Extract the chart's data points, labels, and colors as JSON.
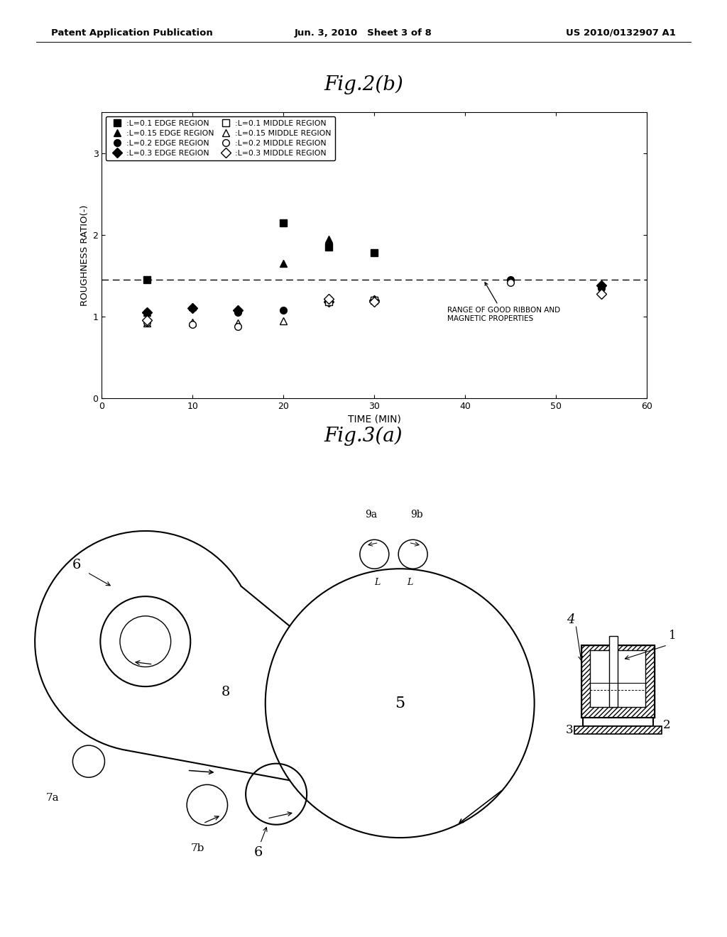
{
  "header_left": "Patent Application Publication",
  "header_center": "Jun. 3, 2010   Sheet 3 of 8",
  "header_right": "US 2010/0132907 A1",
  "fig2b_title": "Fig.2(b)",
  "fig3a_title": "Fig.3(a)",
  "xlabel": "TIME (MIN)",
  "ylabel": "ROUGHNESS RATIO(-)",
  "xlim": [
    0,
    60
  ],
  "ylim": [
    0.0,
    3.5
  ],
  "yticks": [
    0.0,
    1.0,
    2.0,
    3.0
  ],
  "xticks": [
    0,
    10,
    20,
    30,
    40,
    50,
    60
  ],
  "dashed_line_y": 1.45,
  "annotation_text": "RANGE OF GOOD RIBBON AND\nMAGNETIC PROPERTIES",
  "series": {
    "L01_edge": {
      "x": [
        5,
        20,
        25,
        30
      ],
      "y": [
        1.45,
        2.15,
        1.85,
        1.78
      ],
      "marker": "s",
      "filled": true
    },
    "L015_edge": {
      "x": [
        5,
        10,
        20,
        25
      ],
      "y": [
        1.05,
        1.12,
        1.65,
        1.95
      ],
      "marker": "^",
      "filled": true
    },
    "L02_edge": {
      "x": [
        5,
        10,
        15,
        20,
        45,
        55
      ],
      "y": [
        1.05,
        1.1,
        1.05,
        1.08,
        1.45,
        1.35
      ],
      "marker": "o",
      "filled": true
    },
    "L03_edge": {
      "x": [
        5,
        10,
        15,
        25,
        30,
        55
      ],
      "y": [
        1.05,
        1.1,
        1.08,
        1.18,
        1.2,
        1.38
      ],
      "marker": "D",
      "filled": true
    },
    "L01_middle": {
      "x": [
        25,
        30
      ],
      "y": [
        1.18,
        1.2
      ],
      "marker": "s",
      "filled": false
    },
    "L015_middle": {
      "x": [
        5,
        10,
        15,
        20
      ],
      "y": [
        0.92,
        0.93,
        0.92,
        0.95
      ],
      "marker": "^",
      "filled": false
    },
    "L02_middle": {
      "x": [
        5,
        10,
        15,
        45
      ],
      "y": [
        0.93,
        0.9,
        0.88,
        1.42
      ],
      "marker": "o",
      "filled": false
    },
    "L03_middle": {
      "x": [
        5,
        25,
        30,
        55
      ],
      "y": [
        0.96,
        1.22,
        1.18,
        1.28
      ],
      "marker": "D",
      "filled": false
    }
  },
  "legend_left": [
    {
      "marker": "s",
      "filled": true,
      "label": ":L=0.1 EDGE REGION"
    },
    {
      "marker": "^",
      "filled": true,
      "label": ":L=0.15 EDGE REGION"
    },
    {
      "marker": "o",
      "filled": true,
      "label": ":L=0.2 EDGE REGION"
    },
    {
      "marker": "D",
      "filled": true,
      "label": ":L=0.3 EDGE REGION"
    }
  ],
  "legend_right": [
    {
      "marker": "s",
      "filled": false,
      "label": ":L=0.1 MIDDLE REGION"
    },
    {
      "marker": "^",
      "filled": false,
      "label": ":L=0.15 MIDDLE REGION"
    },
    {
      "marker": "o",
      "filled": false,
      "label": ":L=0.2 MIDDLE REGION"
    },
    {
      "marker": "D",
      "filled": false,
      "label": ":L=0.3 MIDDLE REGION"
    }
  ],
  "background_color": "#ffffff"
}
